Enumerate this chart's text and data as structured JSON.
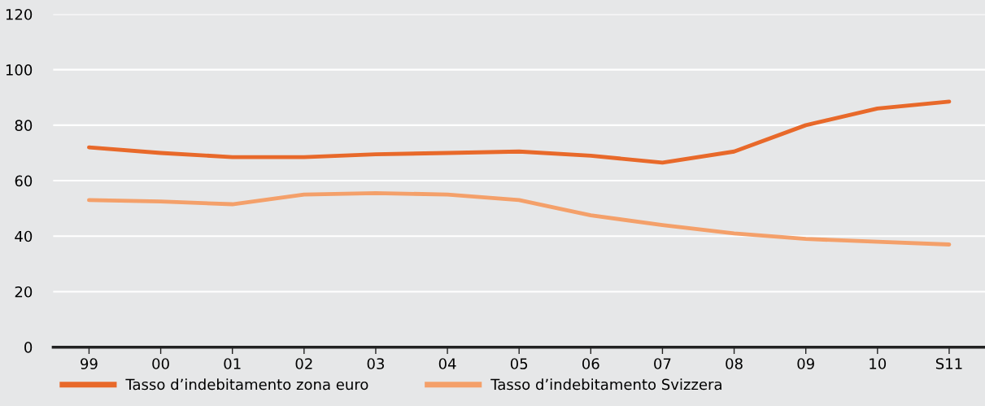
{
  "chart_data": {
    "type": "line",
    "categories": [
      "99",
      "00",
      "01",
      "02",
      "03",
      "04",
      "05",
      "06",
      "07",
      "08",
      "09",
      "10",
      "S11"
    ],
    "series": [
      {
        "name": "Tasso d’indebitamento zona euro",
        "color": "#e8692a",
        "values": [
          72,
          70,
          68.5,
          68.5,
          69.5,
          70,
          70.5,
          69,
          66.5,
          70.5,
          80,
          86,
          88.5
        ]
      },
      {
        "name": "Tasso d’indebitamento Svizzera",
        "color": "#f4a06a",
        "values": [
          53,
          52.5,
          51.5,
          55,
          55.5,
          55,
          53,
          47.5,
          44,
          41,
          39,
          38,
          37
        ]
      }
    ],
    "ylim": [
      0,
      120
    ],
    "yticks": [
      0,
      20,
      40,
      60,
      80,
      100,
      120
    ],
    "grid": "y",
    "legend": "bottom left",
    "marker": "none",
    "line_style": "solid"
  }
}
